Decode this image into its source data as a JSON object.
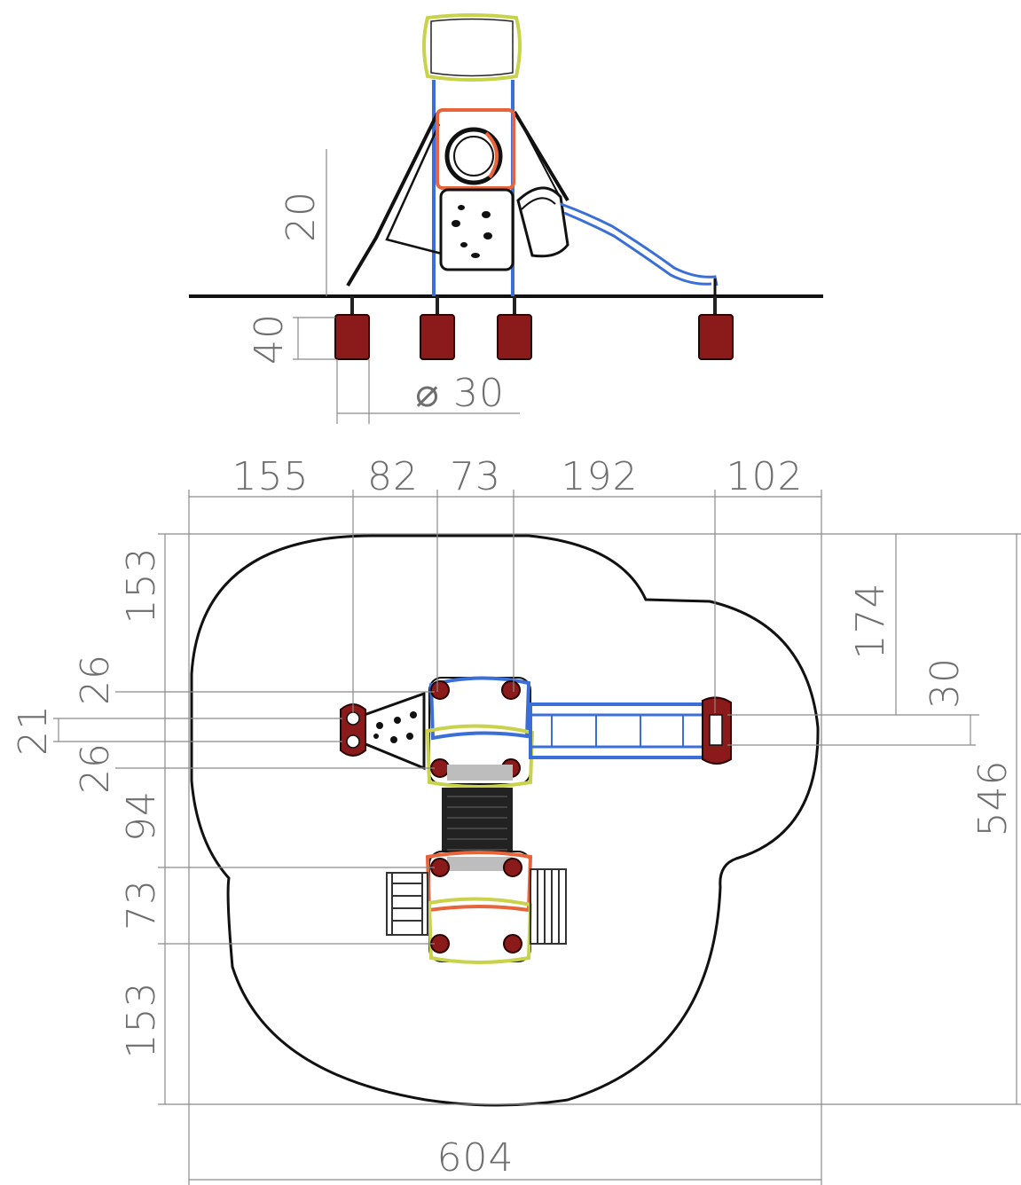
{
  "elevation_view": {
    "height_dim": "20",
    "footing_depth_dim": "40",
    "footing_diameter_dim": "30",
    "diameter_symbol": "⌀"
  },
  "plan_view": {
    "top_dims": [
      "155",
      "82",
      "73",
      "192",
      "102"
    ],
    "left_dims": [
      "153",
      "26",
      "21",
      "26",
      "94",
      "73",
      "153"
    ],
    "right_dims": [
      "174",
      "30",
      "546"
    ],
    "bottom_dim": "604"
  },
  "colors": {
    "footing": "#8b1a1a",
    "post_blue": "#3a6fd8",
    "frame_orange": "#e8643a",
    "frame_yellow": "#c8d24a",
    "line": "#111111",
    "dimension": "#8a8a8a"
  }
}
